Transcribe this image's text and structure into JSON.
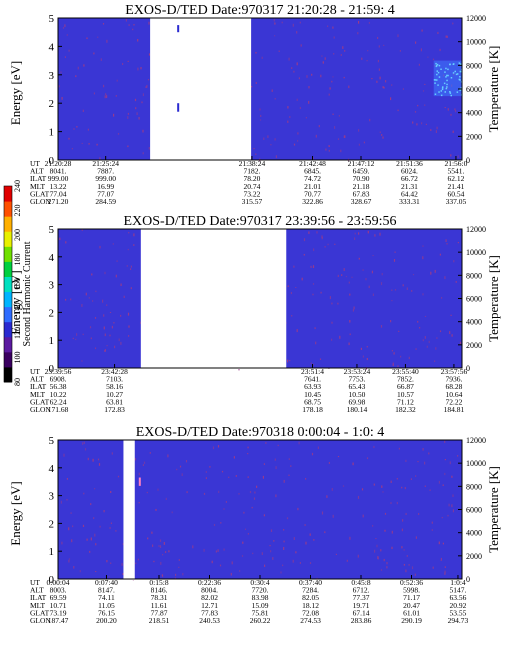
{
  "chart_data": [
    {
      "type": "heatmap",
      "title": "EXOS-D/TED  Date:970317  21:20:28 - 21:59: 4",
      "ylabel": "Energy [eV]",
      "y2label": "Temperature [K]",
      "ylim": [
        0,
        5
      ],
      "y2lim": [
        0,
        12000
      ],
      "yticks": [
        "0",
        "1",
        "2",
        "3",
        "4",
        "5"
      ],
      "y2ticks": [
        "0",
        "2000",
        "4000",
        "6000",
        "8000",
        "10000",
        "12000"
      ],
      "gaps": [
        [
          21.5,
          21.638
        ]
      ],
      "ephem_labels": [
        "UT",
        "ALT",
        "ILAT",
        "MLT",
        "GLAT",
        "GLON"
      ],
      "ephem": [
        {
          "pos": 0.0,
          "vals": [
            "21:20:28",
            "8041.",
            "999.00",
            "13.22",
            "77.04",
            "271.20"
          ]
        },
        {
          "pos": 0.118,
          "vals": [
            "21:25:24",
            "7887.",
            "999.00",
            "16.99",
            "77.07",
            "284.59"
          ]
        },
        {
          "pos": 0.48,
          "vals": [
            "21:38:24",
            "7182.",
            "78.20",
            "20.74",
            "73.22",
            "315.57"
          ]
        },
        {
          "pos": 0.63,
          "vals": [
            "21:42:48",
            "6845.",
            "74.72",
            "21.01",
            "70.77",
            "322.86"
          ]
        },
        {
          "pos": 0.75,
          "vals": [
            "21:47:12",
            "6459.",
            "70.90",
            "21.18",
            "67.83",
            "328.67"
          ]
        },
        {
          "pos": 0.87,
          "vals": [
            "21:51:36",
            "6024.",
            "66.72",
            "21.31",
            "64.42",
            "333.31"
          ]
        },
        {
          "pos": 0.985,
          "vals": [
            "21:56:0",
            "5541.",
            "62.12",
            "21.41",
            "60.54",
            "337.05"
          ]
        }
      ]
    },
    {
      "type": "heatmap",
      "title": "EXOS-D/TED  Date:970317  23:39:56 - 23:59:56",
      "ylabel": "Energy [eV]",
      "y2label": "Temperature [K]",
      "ylim": [
        0,
        5
      ],
      "y2lim": [
        0,
        12000
      ],
      "yticks": [
        "0",
        "1",
        "2",
        "3",
        "4",
        "5"
      ],
      "y2ticks": [
        "0",
        "2000",
        "4000",
        "6000",
        "8000",
        "10000",
        "12000"
      ],
      "ephem_labels": [
        "UT",
        "ALT",
        "ILAT",
        "MLT",
        "GLAT",
        "GLON"
      ],
      "ephem": [
        {
          "pos": 0.0,
          "vals": [
            "23:39:56",
            "6908.",
            "56.38",
            "10.22",
            "62.24",
            "171.68"
          ]
        },
        {
          "pos": 0.14,
          "vals": [
            "23:42:28",
            "7103.",
            "58.16",
            "10.27",
            "63.81",
            "172.83"
          ]
        },
        {
          "pos": 0.63,
          "vals": [
            "23:51:4",
            "7641.",
            "63.93",
            "10.45",
            "68.75",
            "178.18"
          ]
        },
        {
          "pos": 0.74,
          "vals": [
            "23:53:24",
            "7753.",
            "65.43",
            "10.50",
            "69.98",
            "180.14"
          ]
        },
        {
          "pos": 0.86,
          "vals": [
            "23:55:40",
            "7852.",
            "66.87",
            "10.57",
            "71.12",
            "182.32"
          ]
        },
        {
          "pos": 0.98,
          "vals": [
            "23:57:56",
            "7936.",
            "68.28",
            "10.64",
            "72.22",
            "184.81"
          ]
        }
      ]
    },
    {
      "type": "heatmap",
      "title": "EXOS-D/TED  Date:970318  0:00:04 - 1:0: 4",
      "ylabel": "Energy [eV]",
      "y2label": "Temperature [K]",
      "ylim": [
        0,
        5
      ],
      "y2lim": [
        0,
        12000
      ],
      "yticks": [
        "0",
        "1",
        "2",
        "3",
        "4",
        "5"
      ],
      "y2ticks": [
        "0",
        "2000",
        "4000",
        "6000",
        "8000",
        "10000",
        "12000"
      ],
      "ephem_labels": [
        "UT",
        "ALT",
        "ILAT",
        "MLT",
        "GLAT",
        "GLON"
      ],
      "ephem": [
        {
          "pos": 0.0,
          "vals": [
            "0:00:04",
            "8003.",
            "69.59",
            "10.71",
            "73.19",
            "187.47"
          ]
        },
        {
          "pos": 0.12,
          "vals": [
            "0:07:40",
            "8147.",
            "74.11",
            "11.05",
            "76.15",
            "200.20"
          ]
        },
        {
          "pos": 0.25,
          "vals": [
            "0:15:8",
            "8146.",
            "78.31",
            "11.61",
            "77.87",
            "218.51"
          ]
        },
        {
          "pos": 0.375,
          "vals": [
            "0:22:36",
            "8004.",
            "82.02",
            "12.71",
            "77.83",
            "240.53"
          ]
        },
        {
          "pos": 0.5,
          "vals": [
            "0:30:4",
            "7720.",
            "83.98",
            "15.09",
            "75.81",
            "260.22"
          ]
        },
        {
          "pos": 0.625,
          "vals": [
            "0:37:40",
            "7284.",
            "82.05",
            "18.12",
            "72.08",
            "274.53"
          ]
        },
        {
          "pos": 0.75,
          "vals": [
            "0:45:8",
            "6712.",
            "77.37",
            "19.71",
            "67.14",
            "283.86"
          ]
        },
        {
          "pos": 0.875,
          "vals": [
            "0:52:36",
            "5998.",
            "71.17",
            "20.47",
            "61.01",
            "290.19"
          ]
        },
        {
          "pos": 0.99,
          "vals": [
            "1:0:4",
            "5147.",
            "63.56",
            "20.92",
            "53.55",
            "294.73"
          ]
        }
      ]
    }
  ],
  "colorbar": {
    "label": "Second Harmonic Current",
    "ticks": [
      "80",
      "100",
      "120",
      "140",
      "160",
      "180",
      "200",
      "220",
      "240"
    ],
    "colors": [
      "#000000",
      "#3a0060",
      "#5b1aa0",
      "#2a2ad0",
      "#2f6cff",
      "#00b4ff",
      "#00e0c0",
      "#00d040",
      "#70e000",
      "#e8f000",
      "#ffb000",
      "#ff5000",
      "#e00000"
    ]
  },
  "colors": {
    "background": "#3a36d4",
    "speckle": "#9a3a8a",
    "gap": "#ffffff"
  }
}
